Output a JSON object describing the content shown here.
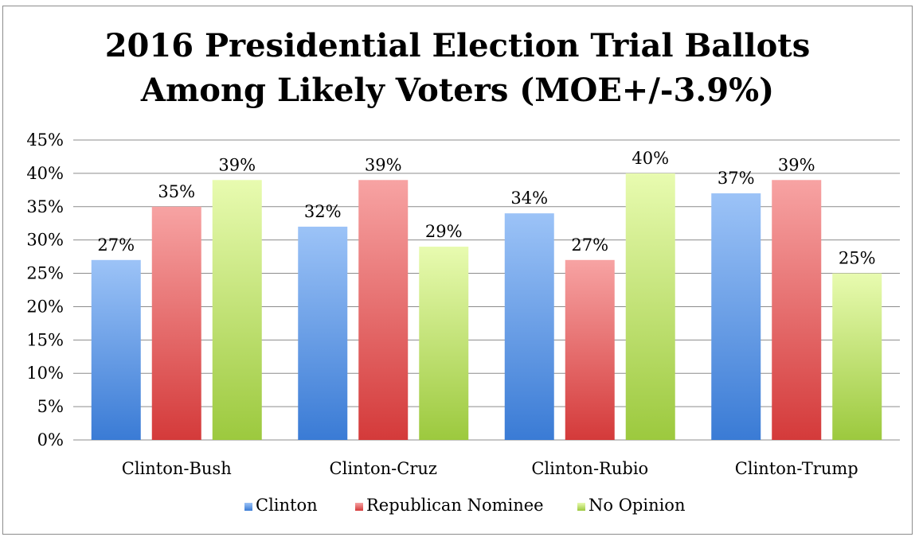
{
  "chart_data": {
    "type": "bar",
    "title_lines": [
      "2016 Presidential Election Trial Ballots",
      "Among Likely Voters (MOE+/-3.9%)"
    ],
    "categories": [
      "Clinton-Bush",
      "Clinton-Cruz",
      "Clinton-Rubio",
      "Clinton-Trump"
    ],
    "series": [
      {
        "name": "Clinton",
        "values": [
          27,
          32,
          34,
          37
        ],
        "color_top": "#9cc3f7",
        "color_bottom": "#3a7bd5"
      },
      {
        "name": "Republican Nominee",
        "values": [
          35,
          39,
          27,
          39
        ],
        "color_top": "#f7a3a3",
        "color_bottom": "#d43a3a"
      },
      {
        "name": "No Opinion",
        "values": [
          39,
          29,
          40,
          25
        ],
        "color_top": "#e8fbb0",
        "color_bottom": "#9cc93e"
      }
    ],
    "data_labels": [
      [
        "27%",
        "32%",
        "34%",
        "37%"
      ],
      [
        "35%",
        "39%",
        "27%",
        "39%"
      ],
      [
        "39%",
        "29%",
        "40%",
        "25%"
      ]
    ],
    "y_ticks": [
      "0%",
      "5%",
      "10%",
      "15%",
      "20%",
      "25%",
      "30%",
      "35%",
      "40%",
      "45%"
    ],
    "ylim": [
      0,
      45
    ],
    "y_step": 5,
    "grid": true,
    "legend_position": "bottom"
  }
}
